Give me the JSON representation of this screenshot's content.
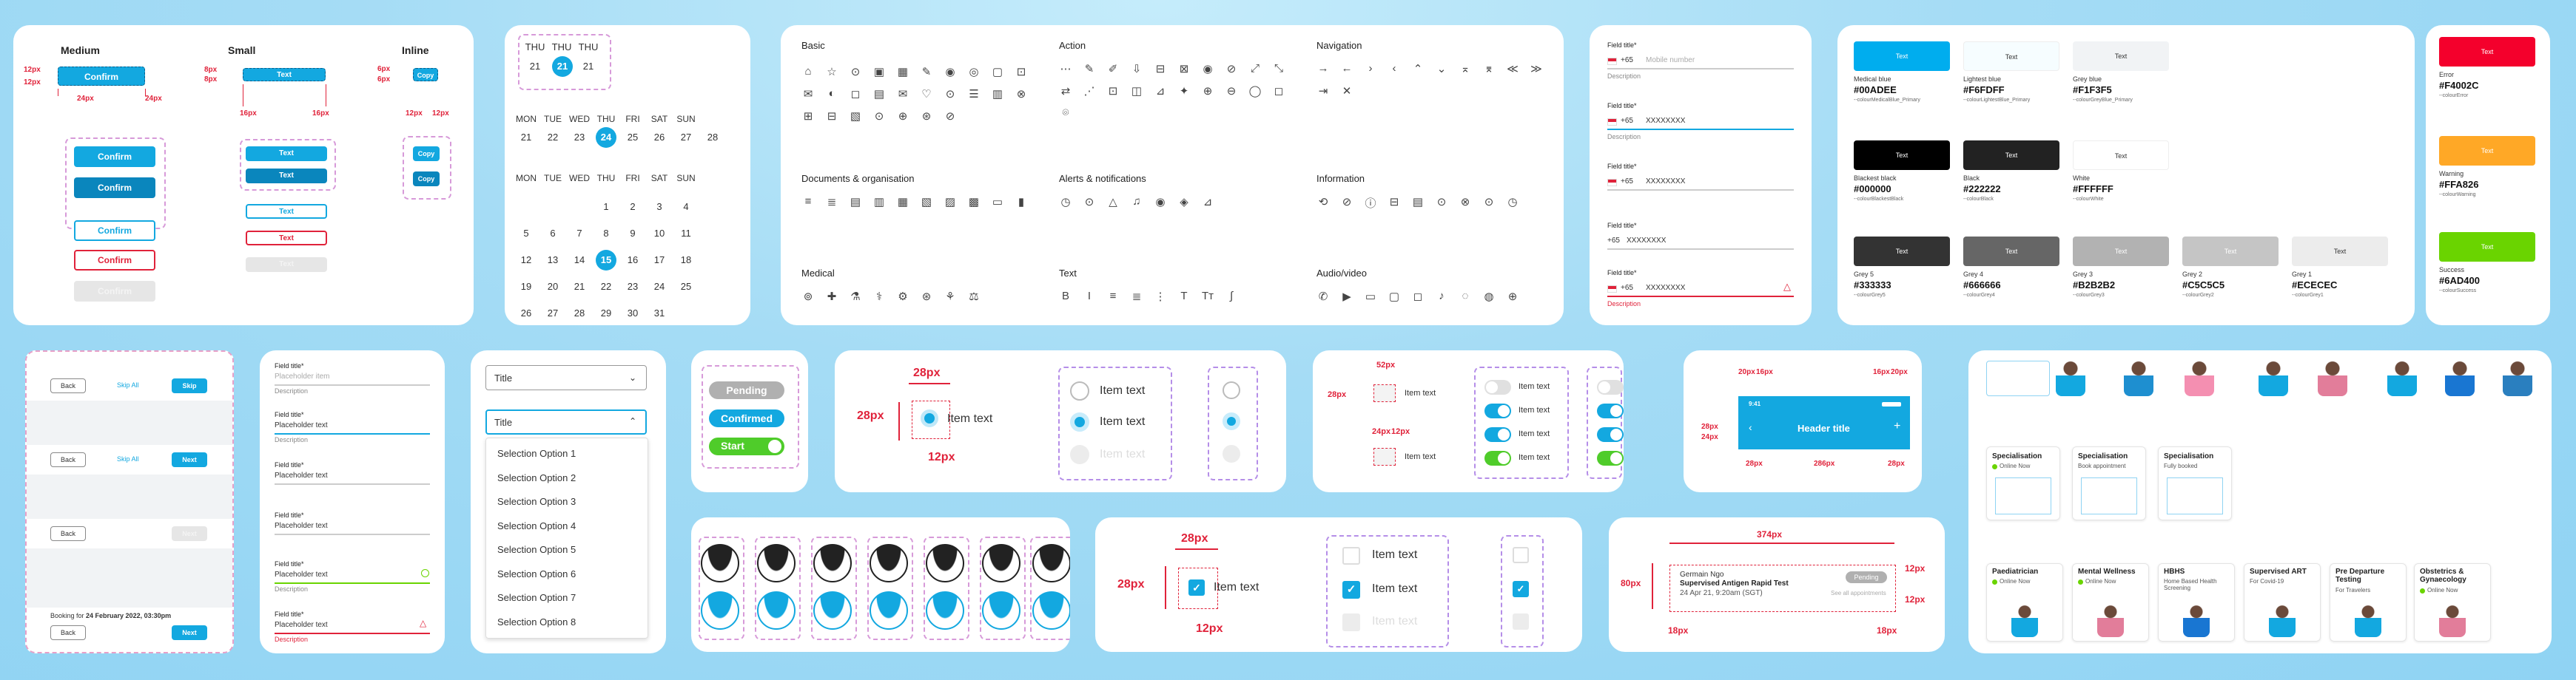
{
  "buttons_card": {
    "col_medium": "Medium",
    "col_small": "Small",
    "col_inline": "Inline",
    "confirm": "Confirm",
    "text": "Text",
    "copy": "Copy",
    "sp12": "12px",
    "sp24": "24px",
    "sp8": "8px",
    "sp16": "16px",
    "sp6": "6px"
  },
  "calendar": {
    "week_days_short": [
      "THU",
      "THU",
      "THU"
    ],
    "week_nums_short": [
      "21",
      "21",
      "21"
    ],
    "days": [
      "MON",
      "TUE",
      "WED",
      "THU",
      "FRI",
      "SAT",
      "SUN"
    ],
    "week_row": [
      "21",
      "22",
      "23",
      "24",
      "25",
      "26",
      "27",
      "28"
    ],
    "month_rows": [
      [
        "",
        "",
        "",
        "1",
        "2",
        "3",
        "4"
      ],
      [
        "5",
        "6",
        "7",
        "8",
        "9",
        "10",
        "11"
      ],
      [
        "12",
        "13",
        "14",
        "15",
        "16",
        "17",
        "18"
      ],
      [
        "19",
        "20",
        "21",
        "22",
        "23",
        "24",
        "25"
      ],
      [
        "26",
        "27",
        "28",
        "29",
        "30",
        "31",
        ""
      ]
    ]
  },
  "icons_card": {
    "basic": "Basic",
    "action": "Action",
    "navigation": "Navigation",
    "documents": "Documents & organisation",
    "alerts": "Alerts & notifications",
    "information": "Information",
    "medical": "Medical",
    "text": "Text",
    "audio_video": "Audio/video"
  },
  "phone_fields": {
    "label": "Field title*",
    "code": "+65",
    "placeholder": "Mobile number",
    "value": "XXXXXXXX",
    "desc": "Description"
  },
  "colors": [
    {
      "label": "Text",
      "name": "Medical blue",
      "hex": "#00ADEE",
      "var": "--colourMedicalBlue_Primary",
      "bg": "#00adee",
      "fg": "#ffffff"
    },
    {
      "label": "Text",
      "name": "Lightest blue",
      "hex": "#F6FDFF",
      "var": "--colourLightestBlue_Primary",
      "bg": "#f6fdff",
      "fg": "#333333"
    },
    {
      "label": "Text",
      "name": "Grey blue",
      "hex": "#F1F3F5",
      "var": "--colourGreyBlue_Primary",
      "bg": "#f1f3f5",
      "fg": "#333333"
    },
    {
      "label": "Text",
      "name": "Blackest black",
      "hex": "#000000",
      "var": "--colourBlackestBlack",
      "bg": "#000000",
      "fg": "#ffffff"
    },
    {
      "label": "Text",
      "name": "Black",
      "hex": "#222222",
      "var": "--colourBlack",
      "bg": "#222222",
      "fg": "#ffffff"
    },
    {
      "label": "Text",
      "name": "White",
      "hex": "#FFFFFF",
      "var": "--colourWhite",
      "bg": "#ffffff",
      "fg": "#333333"
    },
    {
      "label": "Text",
      "name": "Grey 5",
      "hex": "#333333",
      "var": "--colourGrey5",
      "bg": "#333333",
      "fg": "#ffffff"
    },
    {
      "label": "Text",
      "name": "Grey 4",
      "hex": "#666666",
      "var": "--colourGrey4",
      "bg": "#666666",
      "fg": "#ffffff"
    },
    {
      "label": "Text",
      "name": "Grey 3",
      "hex": "#B2B2B2",
      "var": "--colourGrey3",
      "bg": "#b2b2b2",
      "fg": "#ffffff"
    },
    {
      "label": "Text",
      "name": "Grey 2",
      "hex": "#C5C5C5",
      "var": "--colourGrey2",
      "bg": "#c5c5c5",
      "fg": "#ffffff"
    },
    {
      "label": "Text",
      "name": "Grey 1",
      "hex": "#ECECEC",
      "var": "--colourGrey1",
      "bg": "#ececec",
      "fg": "#333333"
    }
  ],
  "status_colors": [
    {
      "label": "Text",
      "name": "Error",
      "hex": "#F4002C",
      "var": "--colourError",
      "bg": "#f4002c"
    },
    {
      "label": "Text",
      "name": "Warning",
      "hex": "#FFA826",
      "var": "--colourWarning",
      "bg": "#ffa826"
    },
    {
      "label": "Text",
      "name": "Success",
      "hex": "#6AD400",
      "var": "--colourSuccess",
      "bg": "#6ad400"
    }
  ],
  "footer_card": {
    "back": "Back",
    "skip_all": "Skip All",
    "skip": "Skip",
    "next": "Next",
    "booking_prefix": "Booking for ",
    "booking_date": "24 February 2022, 03:30pm"
  },
  "text_fields": {
    "label": "Field title*",
    "placeholder_item": "Placeholder item",
    "placeholder_text": "Placeholder text",
    "desc": "Description"
  },
  "dropdown": {
    "title": "Title",
    "options": [
      "Selection Option 1",
      "Selection Option 2",
      "Selection Option 3",
      "Selection Option 4",
      "Selection Option 5",
      "Selection Option 6",
      "Selection Option 7",
      "Selection Option 8"
    ]
  },
  "pills": {
    "pending": "Pending",
    "confirmed": "Confirmed",
    "start": "Start"
  },
  "radio_card": {
    "item": "Item text",
    "s28": "28px",
    "s12": "12px"
  },
  "toggle_card": {
    "item": "Item text",
    "s52": "52px",
    "s28": "28px",
    "s24": "24px",
    "s12": "12px"
  },
  "header_card": {
    "title": "Header title",
    "s20": "20px",
    "s16": "16px",
    "s28": "28px",
    "s24": "24px",
    "s286": "286px",
    "time": "9:41"
  },
  "checkbox_card": {
    "item": "Item text",
    "s28": "28px",
    "s12": "12px"
  },
  "appt_card": {
    "s374": "374px",
    "s80": "80px",
    "s12": "12px",
    "s18": "18px",
    "name": "Germain Ngo",
    "test": "Supervised Antigen Rapid Test",
    "when": "24 Apr 21, 9:20am (SGT)",
    "status": "Pending",
    "link": "See all appointments"
  },
  "specialisation": {
    "cards_top": [
      {
        "title": "Specialisation",
        "sub": "Online Now",
        "dot": true
      },
      {
        "title": "Specialisation",
        "sub": "Book appointment",
        "dot": false
      },
      {
        "title": "Specialisation",
        "sub": "Fully booked",
        "dot": false
      }
    ],
    "cards_bottom": [
      {
        "title": "Paediatrician",
        "sub": "Online Now",
        "dot": true
      },
      {
        "title": "Mental Wellness",
        "sub": "Online Now",
        "dot": true
      },
      {
        "title": "HBHS",
        "sub": "Home Based Health Screening",
        "dot": false
      },
      {
        "title": "Supervised ART",
        "sub": "For Covid-19",
        "dot": false
      },
      {
        "title": "Pre Departure Testing",
        "sub": "For Travelers",
        "dot": false
      },
      {
        "title": "Obstetrics & Gynaecology",
        "sub": "Online Now",
        "dot": true
      }
    ]
  }
}
